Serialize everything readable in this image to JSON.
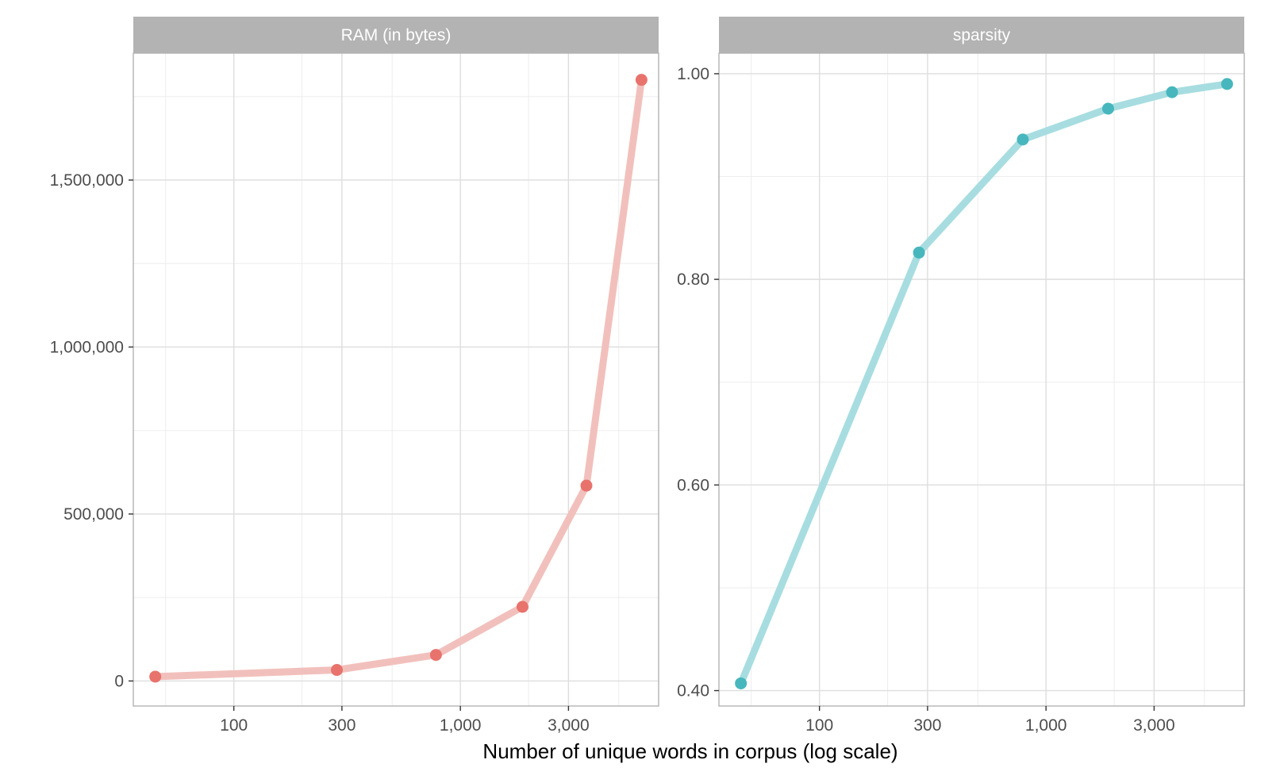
{
  "chart_data": {
    "type": "line",
    "xlabel": "Number of unique words in corpus (log scale)",
    "x_scale": "log",
    "x_ticks": [
      100,
      300,
      1000,
      3000
    ],
    "x_tick_labels": [
      "100",
      "300",
      "1,000",
      "3,000"
    ],
    "x_minor_ticks": [
      50,
      200,
      500,
      2000,
      5000
    ],
    "xlim": [
      36,
      7500
    ],
    "grid": true,
    "legend": "none",
    "panels": [
      {
        "title": "RAM (in bytes)",
        "color": "#e8736c",
        "line_color": "#f2c0bc",
        "ylim": [
          -75000,
          1880000
        ],
        "y_ticks": [
          0,
          500000,
          1000000,
          1500000
        ],
        "y_tick_labels": [
          "0",
          "500,000",
          "1,000,000",
          "1,500,000"
        ],
        "y_minor_ticks": [
          250000,
          750000,
          1250000,
          1750000
        ],
        "series": [
          {
            "x": [
              45,
              285,
              780,
              1880,
              3600,
              6300
            ],
            "y": [
              13000,
              33000,
              78000,
              222000,
              585000,
              1800000
            ]
          }
        ]
      },
      {
        "title": "sparsity",
        "color": "#47b7bd",
        "line_color": "#a7dde0",
        "ylim": [
          0.385,
          1.02
        ],
        "y_ticks": [
          0.4,
          0.6,
          0.8,
          1.0
        ],
        "y_tick_labels": [
          "0.40",
          "0.60",
          "0.80",
          "1.00"
        ],
        "y_minor_ticks": [
          0.5,
          0.7,
          0.9
        ],
        "series": [
          {
            "x": [
              45,
              275,
              790,
              1880,
              3600,
              6300
            ],
            "y": [
              0.407,
              0.826,
              0.936,
              0.966,
              0.982,
              0.99
            ]
          }
        ]
      }
    ]
  }
}
